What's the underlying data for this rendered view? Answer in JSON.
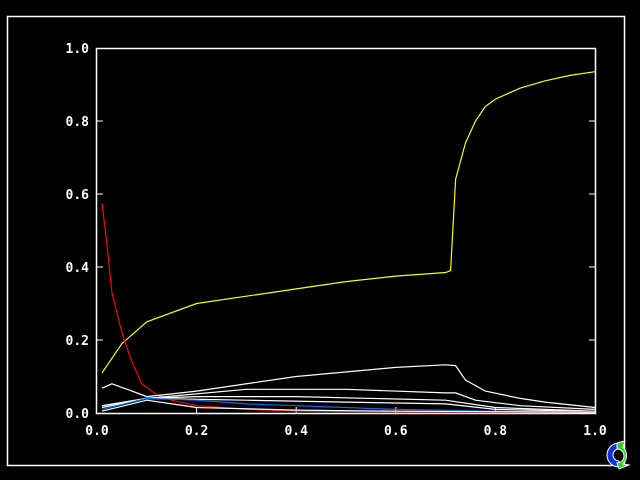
{
  "chart_data": {
    "type": "line",
    "title": "",
    "xlabel": "",
    "ylabel": "",
    "xlim": [
      0.0,
      1.0
    ],
    "ylim": [
      0.0,
      1.0
    ],
    "grid": false,
    "xticks": [
      "0.0",
      "0.2",
      "0.4",
      "0.6",
      "0.8",
      "1.0"
    ],
    "yticks": [
      "0.0",
      "0.2",
      "0.4",
      "0.6",
      "0.8",
      "1.0"
    ],
    "background": "#000000",
    "axis_color": "#ffffff",
    "series": [
      {
        "color": "#ffff00",
        "x": [
          0.01,
          0.05,
          0.1,
          0.2,
          0.3,
          0.4,
          0.5,
          0.6,
          0.7,
          0.71,
          0.72,
          0.74,
          0.76,
          0.78,
          0.8,
          0.85,
          0.9,
          0.95,
          1.0
        ],
        "y": [
          0.11,
          0.19,
          0.25,
          0.3,
          0.32,
          0.34,
          0.36,
          0.375,
          0.385,
          0.39,
          0.64,
          0.74,
          0.8,
          0.84,
          0.86,
          0.89,
          0.91,
          0.925,
          0.935
        ]
      },
      {
        "color": "#ff0000",
        "x": [
          0.01,
          0.02,
          0.03,
          0.05,
          0.07,
          0.09,
          0.12,
          0.15,
          0.2,
          0.3,
          0.4,
          0.6,
          0.8,
          1.0
        ],
        "y": [
          0.575,
          0.46,
          0.33,
          0.22,
          0.14,
          0.08,
          0.05,
          0.035,
          0.02,
          0.01,
          0.005,
          0.003,
          0.002,
          0.002
        ]
      },
      {
        "color": "#ffffff",
        "x": [
          0.01,
          0.03,
          0.05,
          0.1,
          0.2,
          0.4,
          0.6,
          0.7,
          0.72,
          0.74,
          0.78,
          0.85,
          0.9,
          1.0
        ],
        "y": [
          0.068,
          0.08,
          0.07,
          0.045,
          0.06,
          0.1,
          0.125,
          0.132,
          0.13,
          0.09,
          0.06,
          0.04,
          0.03,
          0.015
        ]
      },
      {
        "color": "#ffffff",
        "x": [
          0.01,
          0.1,
          0.3,
          0.5,
          0.7,
          0.72,
          0.76,
          0.85,
          1.0
        ],
        "y": [
          0.02,
          0.04,
          0.065,
          0.065,
          0.055,
          0.055,
          0.035,
          0.02,
          0.01
        ]
      },
      {
        "color": "#ffffff",
        "x": [
          0.01,
          0.1,
          0.2,
          0.4,
          0.7,
          0.8,
          1.0
        ],
        "y": [
          0.02,
          0.04,
          0.045,
          0.045,
          0.035,
          0.015,
          0.005
        ]
      },
      {
        "color": "#ffffff",
        "x": [
          0.01,
          0.1,
          0.3,
          0.5,
          0.7,
          0.8,
          1.0
        ],
        "y": [
          0.015,
          0.04,
          0.035,
          0.03,
          0.025,
          0.01,
          0.004
        ]
      },
      {
        "color": "#0070ff",
        "x": [
          0.01,
          0.1,
          0.2,
          0.3,
          0.4,
          0.6,
          0.8,
          1.0
        ],
        "y": [
          0.01,
          0.04,
          0.035,
          0.025,
          0.02,
          0.01,
          0.005,
          0.003
        ]
      },
      {
        "color": "#ffffff",
        "x": [
          0.01,
          0.1,
          0.2,
          0.4,
          0.6,
          1.0
        ],
        "y": [
          0.005,
          0.035,
          0.015,
          0.008,
          0.005,
          0.002
        ]
      }
    ]
  },
  "icons": {
    "corner": "refresh-arrows-icon"
  }
}
